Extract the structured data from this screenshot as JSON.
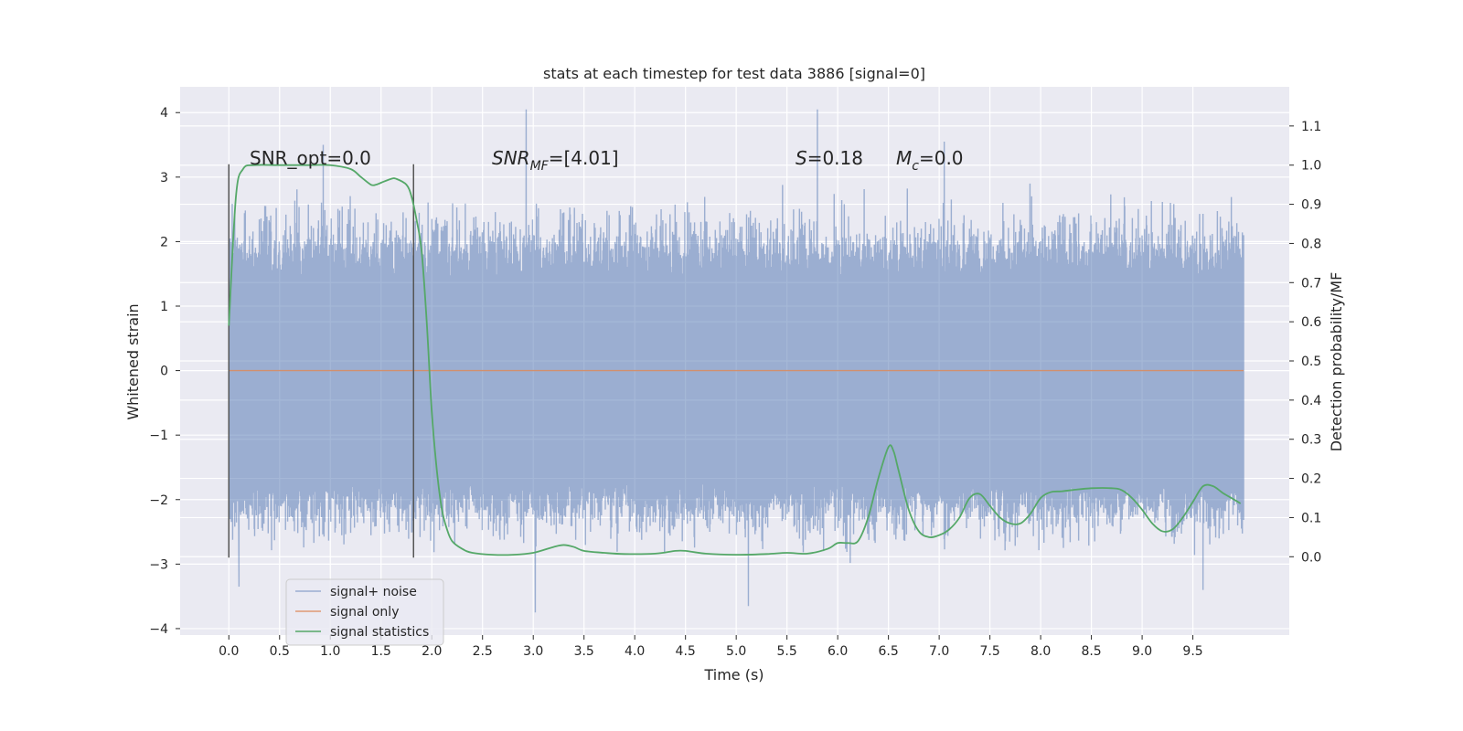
{
  "chart_data": {
    "type": "line",
    "title": "stats at each timestep for test data 3886 [signal=0]",
    "xlabel": "Time (s)",
    "ylabel": "Whitened strain",
    "ylabel_right": "Detection probability/MF",
    "xlim": [
      -0.48,
      10.45
    ],
    "ylim": [
      -4.1,
      4.4
    ],
    "ylim_right": [
      -0.2,
      1.2
    ],
    "x_ticks": [
      "0.0",
      "0.5",
      "1.0",
      "1.5",
      "2.0",
      "2.5",
      "3.0",
      "3.5",
      "4.0",
      "4.5",
      "5.0",
      "5.5",
      "6.0",
      "6.5",
      "7.0",
      "7.5",
      "8.0",
      "8.5",
      "9.0",
      "9.5"
    ],
    "y_ticks": [
      "4",
      "3",
      "2",
      "1",
      "0",
      "−1",
      "−2",
      "−3",
      "−4"
    ],
    "y_ticks_right": [
      "1.1",
      "1.0",
      "0.9",
      "0.8",
      "0.7",
      "0.6",
      "0.5",
      "0.4",
      "0.3",
      "0.2",
      "0.1",
      "0.0"
    ],
    "grid": true,
    "legend": {
      "placement": "lower-left",
      "entries": [
        {
          "label": "signal+ noise",
          "color": "#4c72b0"
        },
        {
          "label": "signal only",
          "color": "#dd8452"
        },
        {
          "label": "signal statistics",
          "color": "#55a868"
        }
      ]
    },
    "annotations": {
      "snr_opt": "SNR_opt=0.0",
      "snr_mf_main": "SNR",
      "snr_mf_sub": "MF",
      "snr_mf_value": "=[4.01]",
      "s_label": "S",
      "s_value": "=0.18",
      "mc_main": "M",
      "mc_sub": "c",
      "mc_value": "=0.0"
    },
    "vlines": [
      {
        "x": 0.0,
        "ymin": -2.9,
        "ymax": 3.2
      },
      {
        "x": 1.82,
        "ymin": -2.9,
        "ymax": 3.2
      }
    ],
    "series": [
      {
        "name": "signal+ noise",
        "axis": "left",
        "x_start": 0.0,
        "x_end": 10.0,
        "envelope_typical": [
          -1.7,
          1.4
        ],
        "notable_peaks": [
          {
            "x": 2.93,
            "y": 4.05
          },
          {
            "x": 5.8,
            "y": 4.05
          },
          {
            "x": 0.93,
            "y": 3.5
          },
          {
            "x": 7.05,
            "y": 3.55
          },
          {
            "x": 3.02,
            "y": -3.75
          },
          {
            "x": 5.12,
            "y": -3.65
          },
          {
            "x": 9.6,
            "y": -3.4
          },
          {
            "x": 0.1,
            "y": -3.35
          }
        ]
      },
      {
        "name": "signal only",
        "axis": "left",
        "x": [
          0.0,
          10.0
        ],
        "y": [
          0.0,
          0.0
        ]
      },
      {
        "name": "signal statistics",
        "axis": "right",
        "x": [
          0.0,
          0.07,
          0.14,
          0.25,
          0.5,
          0.8,
          1.0,
          1.2,
          1.3,
          1.4,
          1.45,
          1.5,
          1.6,
          1.65,
          1.75,
          1.8,
          1.85,
          1.9,
          1.95,
          2.0,
          2.05,
          2.1,
          2.15,
          2.2,
          2.3,
          2.4,
          2.6,
          2.8,
          3.0,
          3.2,
          3.3,
          3.4,
          3.5,
          3.7,
          3.9,
          4.2,
          4.4,
          4.5,
          4.7,
          5.0,
          5.3,
          5.5,
          5.7,
          5.9,
          6.0,
          6.1,
          6.2,
          6.3,
          6.4,
          6.5,
          6.55,
          6.6,
          6.7,
          6.8,
          6.9,
          7.0,
          7.1,
          7.2,
          7.3,
          7.4,
          7.5,
          7.6,
          7.7,
          7.8,
          7.9,
          8.0,
          8.1,
          8.2,
          8.3,
          8.5,
          8.7,
          8.8,
          8.9,
          9.0,
          9.1,
          9.2,
          9.3,
          9.4,
          9.5,
          9.6,
          9.7,
          9.8,
          9.9,
          9.97
        ],
        "y": [
          0.59,
          0.92,
          0.99,
          1.0,
          1.0,
          1.0,
          1.0,
          0.99,
          0.97,
          0.95,
          0.95,
          0.955,
          0.965,
          0.965,
          0.95,
          0.92,
          0.86,
          0.78,
          0.6,
          0.37,
          0.22,
          0.12,
          0.07,
          0.04,
          0.02,
          0.01,
          0.005,
          0.005,
          0.01,
          0.025,
          0.03,
          0.025,
          0.015,
          0.01,
          0.007,
          0.008,
          0.015,
          0.015,
          0.008,
          0.005,
          0.007,
          0.01,
          0.008,
          0.02,
          0.035,
          0.035,
          0.04,
          0.1,
          0.2,
          0.28,
          0.27,
          0.22,
          0.12,
          0.065,
          0.05,
          0.055,
          0.07,
          0.1,
          0.15,
          0.16,
          0.13,
          0.1,
          0.085,
          0.085,
          0.11,
          0.15,
          0.165,
          0.167,
          0.17,
          0.175,
          0.175,
          0.17,
          0.15,
          0.12,
          0.085,
          0.065,
          0.07,
          0.1,
          0.14,
          0.18,
          0.18,
          0.162,
          0.147,
          0.136
        ]
      }
    ]
  }
}
